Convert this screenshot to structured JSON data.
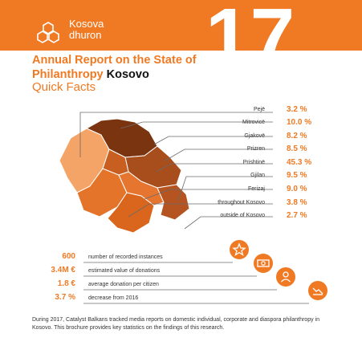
{
  "brand": {
    "line1": "Kosova",
    "line2": "dhuron",
    "edition": "17"
  },
  "title": {
    "line1": "Annual Report on the State of",
    "line2_part1": "Philanthropy ",
    "line2_part2": "Kosovo",
    "subtitle": "Quick Facts"
  },
  "regions": [
    {
      "name": "Pejë",
      "value": "3.2 %"
    },
    {
      "name": "Mitrovicë",
      "value": "10.0 %"
    },
    {
      "name": "Gjakovë",
      "value": "8.2 %"
    },
    {
      "name": "Prizren",
      "value": "8.5 %"
    },
    {
      "name": "Prishtinë",
      "value": "45.3 %"
    },
    {
      "name": "Gjilan",
      "value": "9.5 %"
    },
    {
      "name": "Ferizaj",
      "value": "9.0 %"
    },
    {
      "name": "throughout Kosovo",
      "value": "3.8 %"
    },
    {
      "name": "outside of Kosovo",
      "value": "2.7 %"
    }
  ],
  "stats": [
    {
      "value": "600",
      "label": "number of recorded instances",
      "icon": "star-icon"
    },
    {
      "value": "3.4M €",
      "label": "estimated value of donations",
      "icon": "money-icon"
    },
    {
      "value": "1.8 €",
      "label": "average donation per citizen",
      "icon": "person-icon"
    },
    {
      "value": "3.7 %",
      "label": "decrease from 2016",
      "icon": "decrease-chart-icon"
    }
  ],
  "footer": {
    "text": "During 2017, Catalyst Balkans tracked media reports on domestic individual, corporate and diaspora philanthropy in Kosovo. This brochure provides key statistics on the findings of this research."
  },
  "colors": {
    "accent": "#f07a24",
    "dark_brown": "#7a3510",
    "brown": "#a84e1c",
    "mid_orange": "#d9661c",
    "light_orange": "#f5a467"
  }
}
